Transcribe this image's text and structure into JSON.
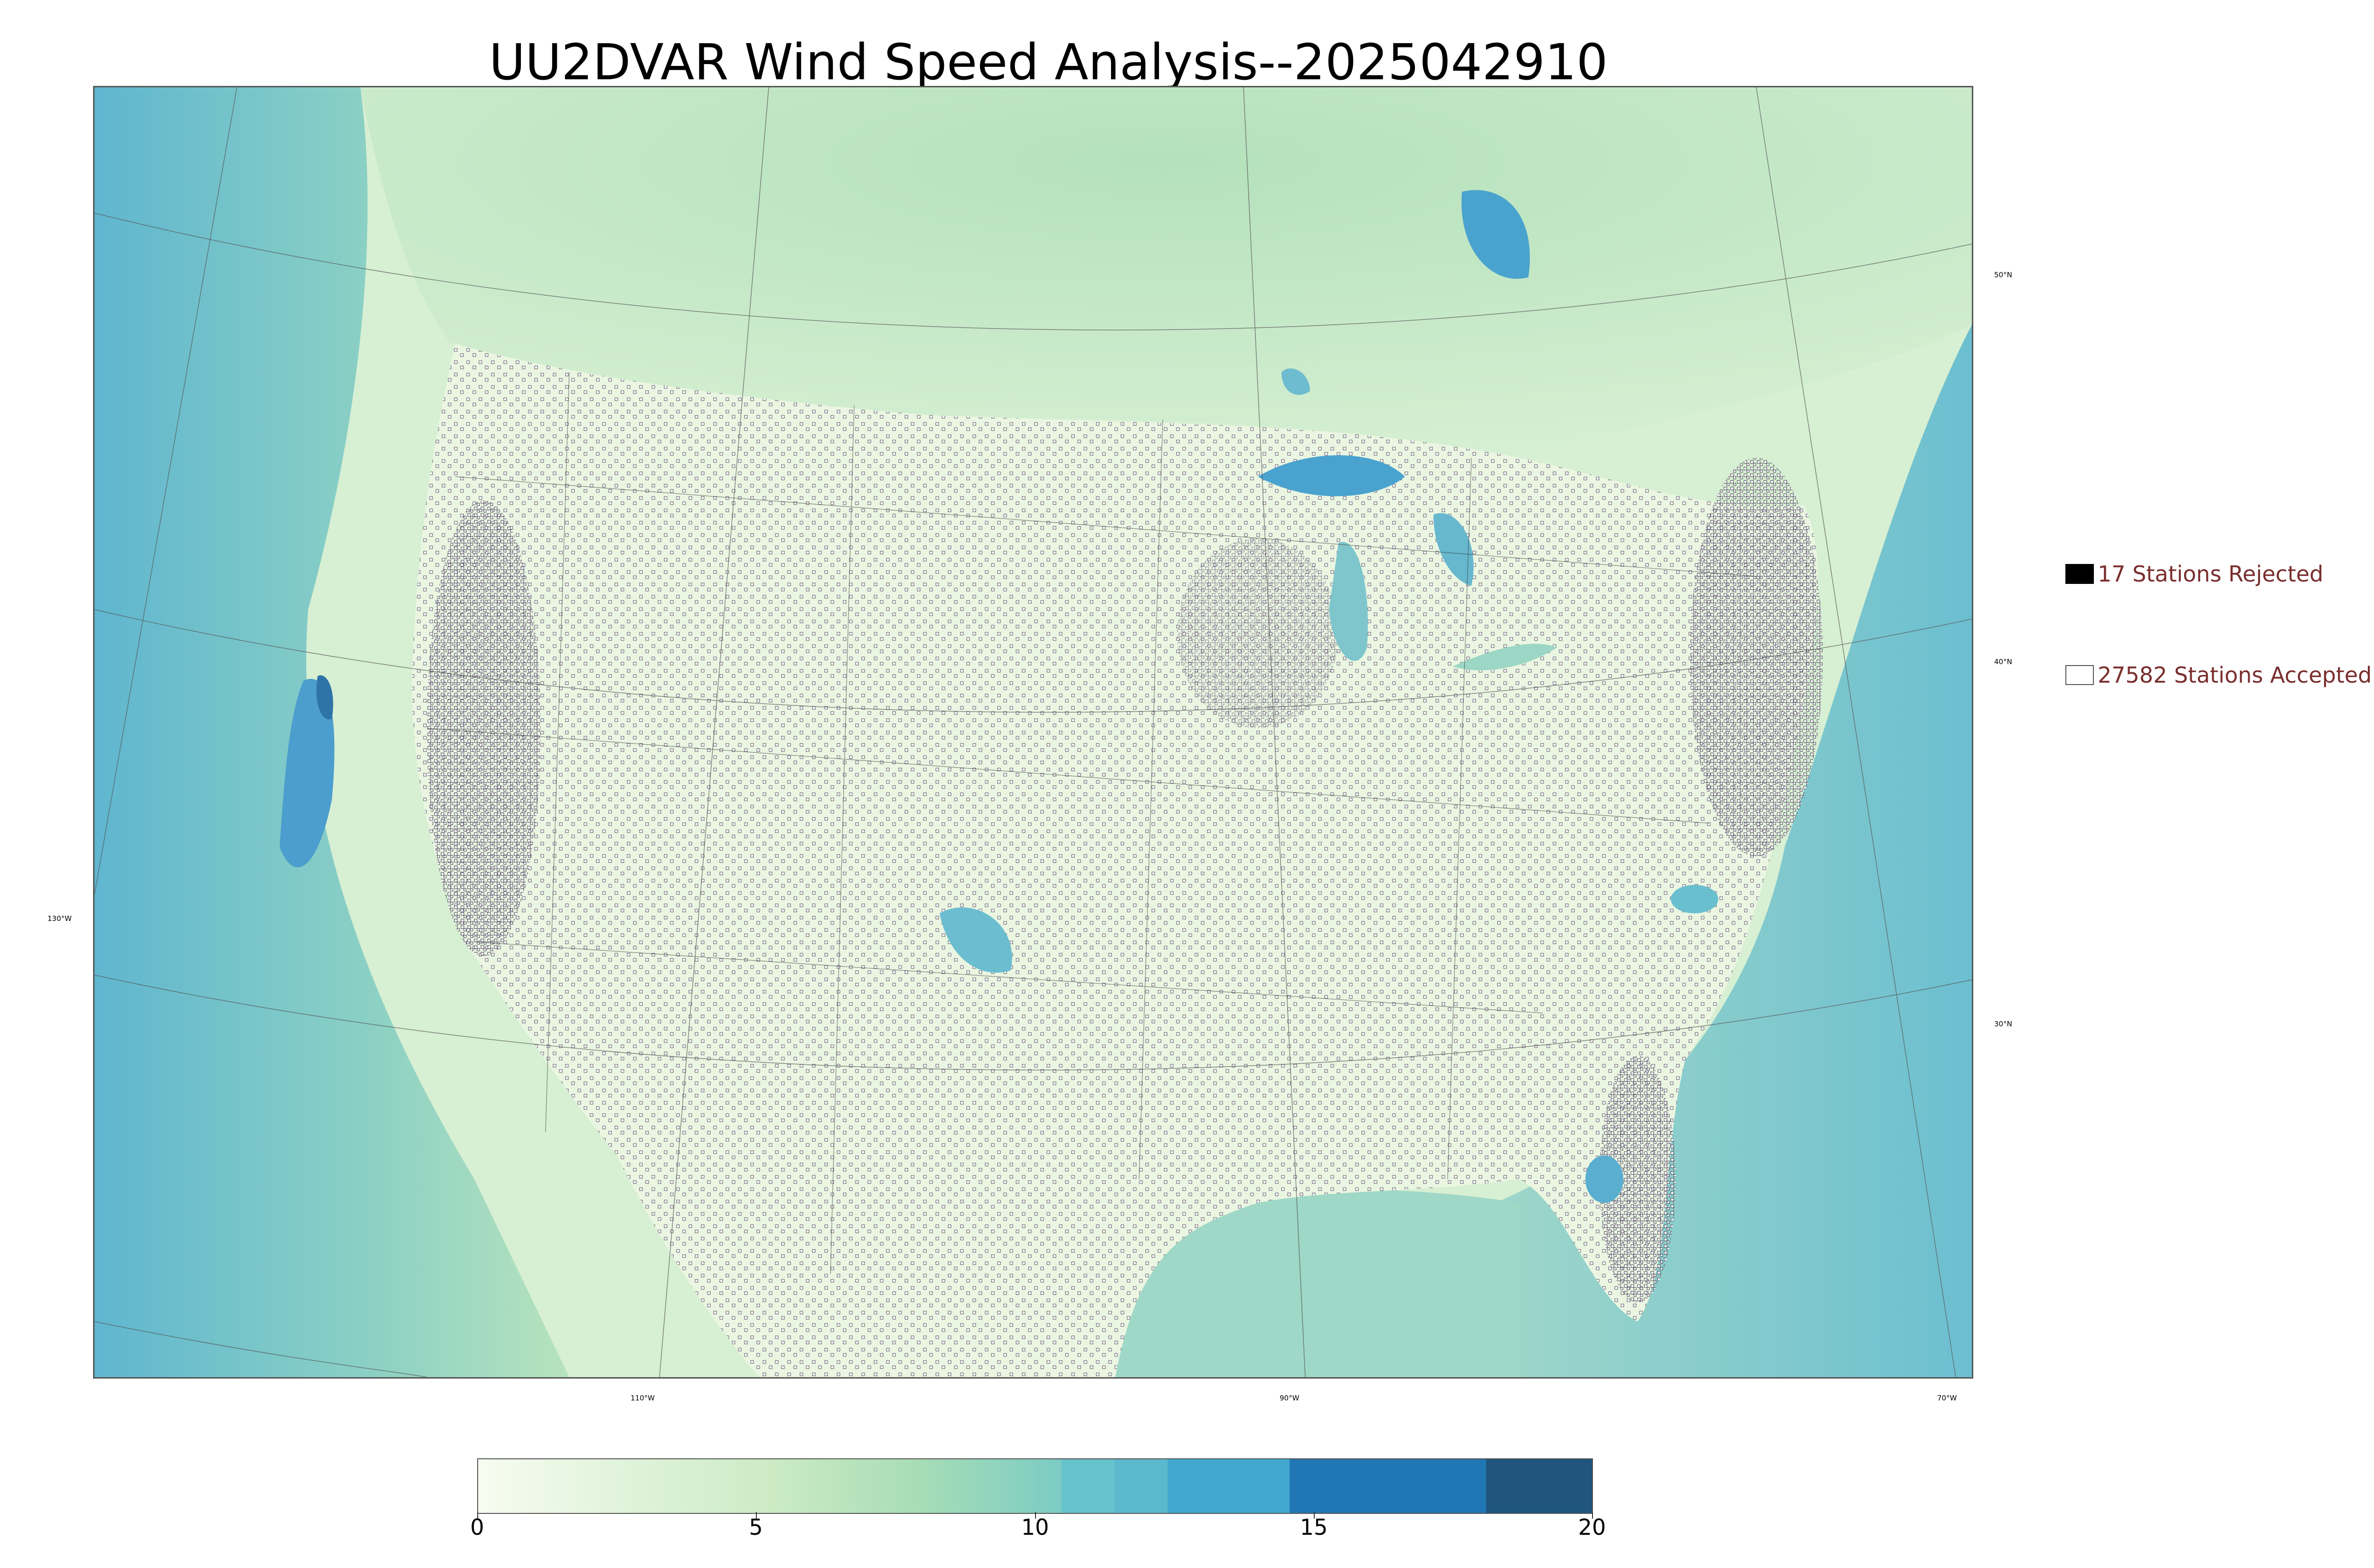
{
  "title": "UU2DVAR Wind Speed Analysis--2025042910",
  "map": {
    "lon_labels": [
      "130°W",
      "110°W",
      "90°W",
      "70°W"
    ],
    "lat_labels": [
      "50°N",
      "40°N",
      "30°N"
    ]
  },
  "legend": {
    "rejected": {
      "text": "17 Stations Rejected",
      "count": 17,
      "swatch_color": "#000000"
    },
    "accepted": {
      "text": "27582 Stations Accepted",
      "count": 27582,
      "swatch_color": "#ffffff"
    },
    "text_color": "#7a2e2e"
  },
  "colorbar": {
    "tick_labels": [
      "0",
      "5",
      "10",
      "15",
      "20"
    ],
    "range": [
      0,
      20
    ],
    "colors": [
      "#f7fcf0",
      "#e0f3db",
      "#ccebc5",
      "#a8ddb5",
      "#7bccc4",
      "#4eb3d3",
      "#2b8cbe",
      "#0868ac",
      "#1f557e"
    ]
  }
}
